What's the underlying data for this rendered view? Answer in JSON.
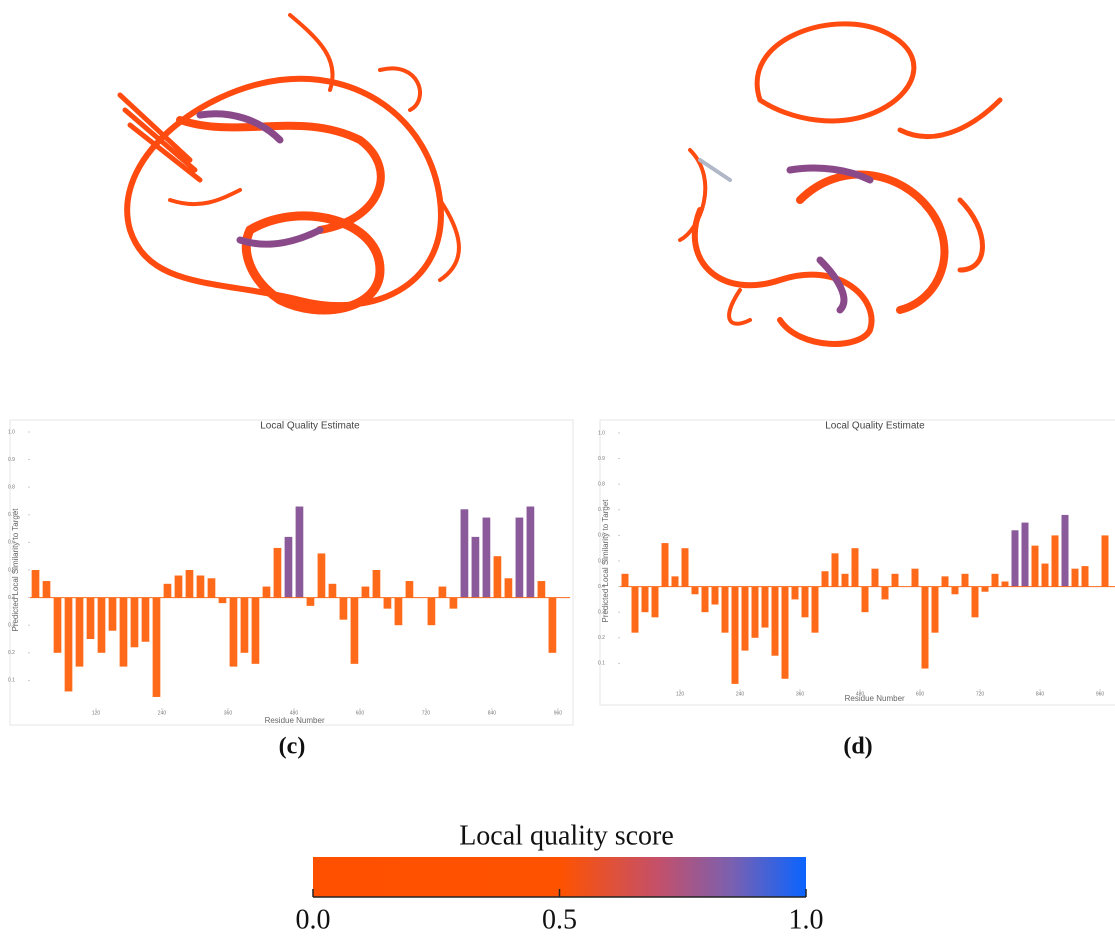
{
  "chart_data": [
    {
      "type": "bar",
      "title": "Local Quality Estimate",
      "x_label": "Residue Number",
      "y_label": "Predicted Local Similarity to Target",
      "panel_label": "(c)",
      "xlim": [
        0,
        982
      ],
      "ylim": [
        0,
        1
      ],
      "baseline": 0.4,
      "color": "#ff6a1a",
      "high_color": "#8a5a9a",
      "high_threshold": 0.6,
      "xticks": [
        120,
        240,
        360,
        480,
        600,
        720,
        840,
        960
      ],
      "yticks": [
        0.1,
        0.2,
        0.3,
        0.4,
        0.5,
        0.6,
        0.7,
        0.8,
        0.9,
        {
          "value": 1,
          "label": "1.0"
        }
      ],
      "x": [
        10,
        30,
        50,
        70,
        90,
        110,
        130,
        150,
        170,
        190,
        210,
        230,
        250,
        270,
        290,
        310,
        330,
        350,
        370,
        390,
        410,
        430,
        450,
        470,
        490,
        510,
        530,
        550,
        570,
        590,
        610,
        630,
        650,
        670,
        690,
        710,
        730,
        750,
        770,
        790,
        810,
        830,
        850,
        870,
        890,
        910,
        930,
        950
      ],
      "values": [
        0.5,
        0.46,
        0.2,
        0.06,
        0.15,
        0.25,
        0.2,
        0.28,
        0.15,
        0.22,
        0.24,
        0.04,
        0.45,
        0.48,
        0.5,
        0.48,
        0.47,
        0.38,
        0.15,
        0.2,
        0.16,
        0.44,
        0.58,
        0.62,
        0.73,
        0.37,
        0.56,
        0.45,
        0.32,
        0.16,
        0.44,
        0.5,
        0.36,
        0.3,
        0.46,
        0.4,
        0.3,
        0.44,
        0.36,
        0.72,
        0.62,
        0.69,
        0.55,
        0.47,
        0.69,
        0.73,
        0.46,
        0.2
      ]
    },
    {
      "type": "bar",
      "title": "Local Quality Estimate",
      "x_label": "Residue Number",
      "y_label": "Predicted Local Similarity to Target",
      "panel_label": "(d)",
      "xlim": [
        0,
        990
      ],
      "ylim": [
        0,
        1
      ],
      "baseline": 0.4,
      "color": "#ff6a1a",
      "high_color": "#8a5a9a",
      "high_threshold": 0.6,
      "xticks": [
        120,
        240,
        360,
        480,
        600,
        720,
        840,
        960
      ],
      "yticks": [
        0.1,
        0.2,
        0.3,
        0.4,
        0.5,
        0.6,
        0.7,
        0.8,
        0.9,
        {
          "value": 1,
          "label": "1.0"
        }
      ],
      "x": [
        10,
        30,
        50,
        70,
        90,
        110,
        130,
        150,
        170,
        190,
        210,
        230,
        250,
        270,
        290,
        310,
        330,
        350,
        370,
        390,
        410,
        430,
        450,
        470,
        490,
        510,
        530,
        550,
        570,
        590,
        610,
        630,
        650,
        670,
        690,
        710,
        730,
        750,
        770,
        790,
        810,
        830,
        850,
        870,
        890,
        910,
        930,
        950,
        970
      ],
      "values": [
        0.45,
        0.22,
        0.3,
        0.28,
        0.57,
        0.44,
        0.55,
        0.37,
        0.3,
        0.33,
        0.22,
        0.02,
        0.15,
        0.2,
        0.24,
        0.13,
        0.04,
        0.35,
        0.28,
        0.22,
        0.46,
        0.53,
        0.45,
        0.55,
        0.3,
        0.47,
        0.35,
        0.45,
        0.4,
        0.47,
        0.08,
        0.22,
        0.44,
        0.37,
        0.45,
        0.28,
        0.38,
        0.45,
        0.42,
        0.62,
        0.65,
        0.56,
        0.49,
        0.6,
        0.68,
        0.47,
        0.48,
        0.4,
        0.6
      ]
    }
  ],
  "colorbar": {
    "title": "Local quality score",
    "range": [
      0,
      1
    ],
    "ticks": [
      {
        "value": 0,
        "label": "0.0"
      },
      0.5,
      {
        "value": 1,
        "label": "1.0"
      }
    ],
    "stops": [
      {
        "value": 0,
        "color": "#ff5000"
      },
      {
        "value": 0.5,
        "color": "#ff5200"
      },
      {
        "value": 0.7,
        "color": "#c4506a"
      },
      {
        "value": 0.85,
        "color": "#7a60b0"
      },
      {
        "value": 1,
        "color": "#0a64ff"
      }
    ]
  }
}
